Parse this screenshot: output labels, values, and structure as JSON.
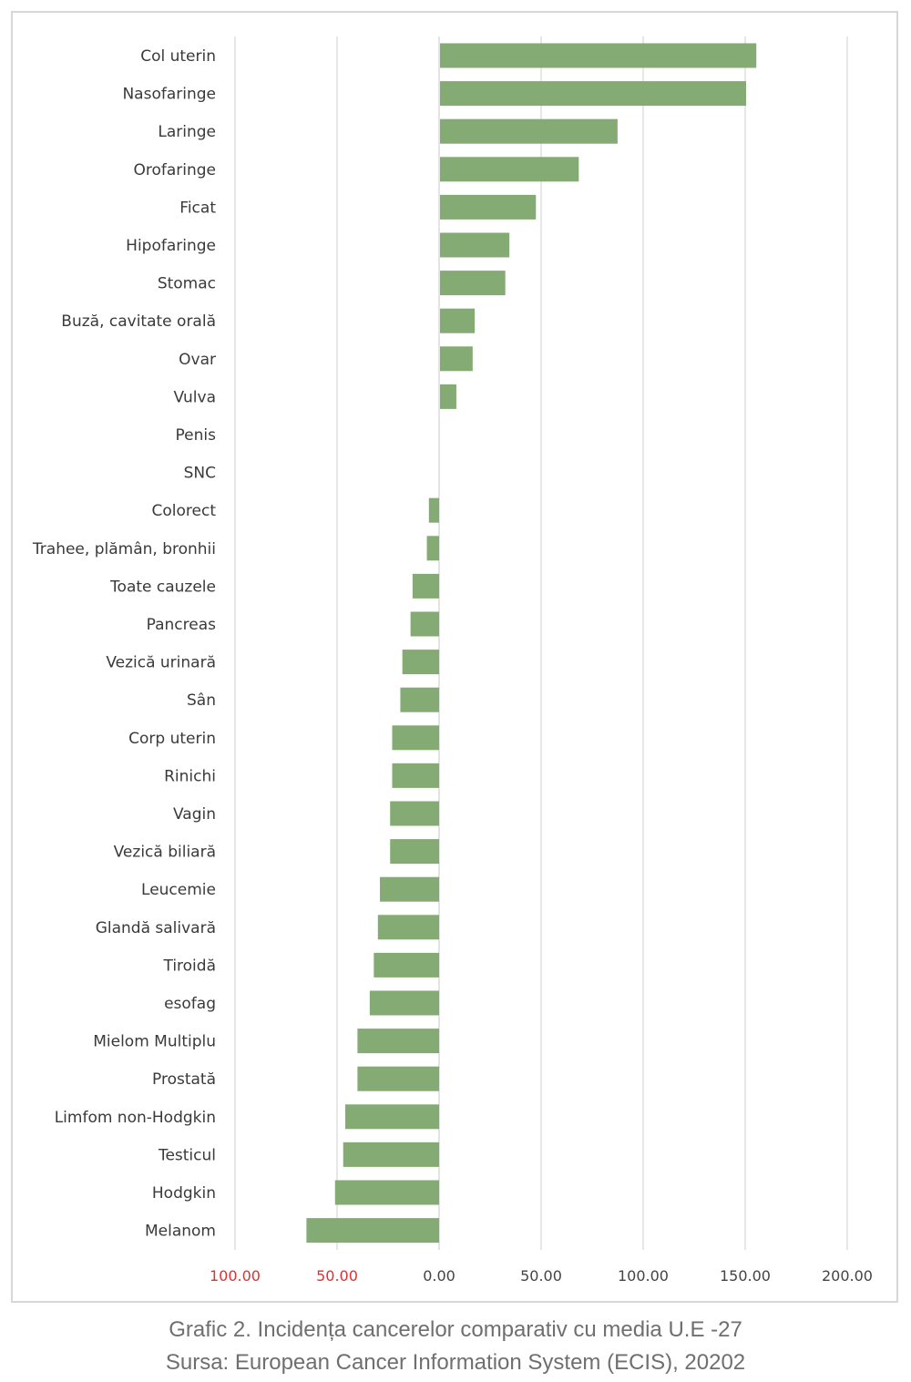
{
  "chart_data": {
    "type": "bar",
    "orientation": "horizontal",
    "categories": [
      "Col uterin",
      "Nasofaringe",
      "Laringe",
      "Orofaringe",
      "Ficat",
      "Hipofaringe",
      "Stomac",
      "Buză, cavitate orală",
      "Ovar",
      "Vulva",
      "Penis",
      "SNC",
      "Colorect",
      "Trahee, plămân, bronhii",
      "Toate cauzele",
      "Pancreas",
      "Vezică urinară",
      "Sân",
      "Corp uterin",
      "Rinichi",
      "Vagin",
      "Vezică biliară",
      "Leucemie",
      "Glandă salivară",
      "Tiroidă",
      "esofag",
      "Mielom Multiplu",
      "Prostată",
      "Limfom non-Hodgkin",
      "Testicul",
      "Hodgkin",
      "Melanom"
    ],
    "values": [
      155,
      150,
      87,
      68,
      47,
      34,
      32,
      17,
      16,
      8,
      0,
      0,
      -5,
      -6,
      -13,
      -14,
      -18,
      -19,
      -23,
      -23,
      -24,
      -24,
      -29,
      -30,
      -32,
      -34,
      -40,
      -40,
      -46,
      -47,
      -51,
      -65
    ],
    "xlim": [
      -100,
      200
    ],
    "ticks": [
      {
        "value": -100,
        "label": "100.00",
        "color": "#e03030"
      },
      {
        "value": -50,
        "label": "50.00",
        "color": "#e03030"
      },
      {
        "value": 0,
        "label": "0.00",
        "color": "#444444"
      },
      {
        "value": 50,
        "label": "50.00",
        "color": "#444444"
      },
      {
        "value": 100,
        "label": "100.00",
        "color": "#444444"
      },
      {
        "value": 150,
        "label": "150.00",
        "color": "#444444"
      },
      {
        "value": 200,
        "label": "200.00",
        "color": "#444444"
      }
    ],
    "bar_color": "#84ab73",
    "grid": true,
    "legend": "none"
  },
  "caption": {
    "line1": "Grafic 2. Incidența cancerelor comparativ cu media U.E -27",
    "line2": "Sursa: European Cancer Information System (ECIS), 20202"
  }
}
